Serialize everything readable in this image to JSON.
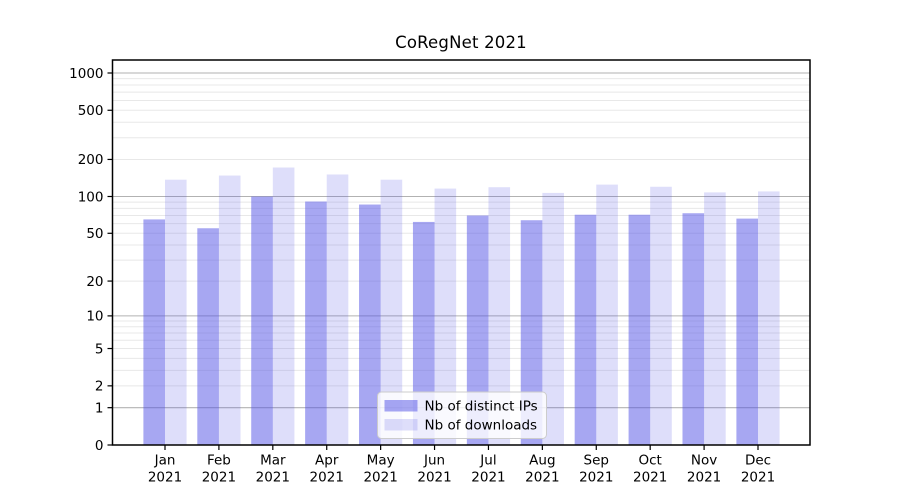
{
  "chart_data": {
    "type": "bar",
    "title": "CoRegNet 2021",
    "categories": [
      "Jan 2021",
      "Feb 2021",
      "Mar 2021",
      "Apr 2021",
      "May 2021",
      "Jun 2021",
      "Jul 2021",
      "Aug 2021",
      "Sep 2021",
      "Oct 2021",
      "Nov 2021",
      "Dec 2021"
    ],
    "series": [
      {
        "name": "Nb of distinct IPs",
        "color": "rgba(80,80,230,0.50)",
        "legend_color": "#a8a8f3",
        "values": [
          65,
          55,
          100,
          91,
          86,
          62,
          70,
          64,
          71,
          71,
          73,
          66
        ]
      },
      {
        "name": "Nb of downloads",
        "color": "rgba(80,80,230,0.19)",
        "legend_color": "#dcdcfa",
        "values": [
          137,
          148,
          172,
          151,
          137,
          116,
          119,
          107,
          125,
          120,
          108,
          110
        ]
      }
    ],
    "xlabel": "",
    "ylabel": "",
    "yscale": "log1p",
    "yticks": [
      0,
      1,
      2,
      5,
      10,
      20,
      50,
      100,
      200,
      500,
      1000
    ],
    "major_gridlines": [
      1,
      10,
      100,
      1000
    ],
    "ylim": [
      0,
      1270
    ],
    "grid": true,
    "legend_position": "lower center"
  },
  "colors": {
    "background": "#ffffff",
    "spine": "#000000",
    "major_grid": "#b2b2b2",
    "minor_grid": "#e8e8e8",
    "tick_text": "#000000",
    "legend_border": "#cccccc",
    "legend_bg": "rgba(255,255,255,0.8)"
  }
}
